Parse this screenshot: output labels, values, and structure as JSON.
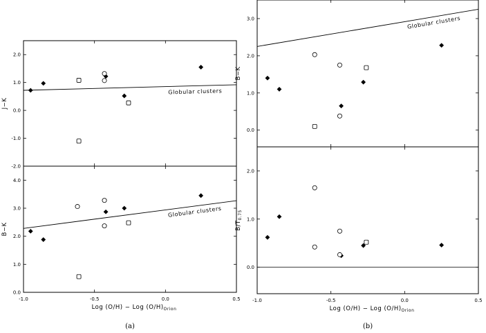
{
  "chart_data": [
    {
      "type": "scatter",
      "ylabel": "J−K",
      "xlim": [
        -1.0,
        0.5
      ],
      "ylim": [
        -2.0,
        2.5
      ],
      "yticks": [
        "2.0",
        "1.0",
        "0.0",
        "-1.0",
        "-2.0"
      ],
      "yticks_values": [
        2.0,
        1.0,
        0.0,
        -1.0,
        -2.0
      ],
      "series": [
        {
          "marker": "filled-diamond",
          "x": [
            -0.95,
            -0.86,
            -0.42,
            -0.29,
            0.25
          ],
          "y": [
            0.72,
            0.97,
            1.22,
            0.52,
            1.55
          ]
        },
        {
          "marker": "open-circle",
          "x": [
            -0.43,
            -0.43
          ],
          "y": [
            1.32,
            1.07
          ]
        },
        {
          "marker": "open-square",
          "x": [
            -0.61,
            -0.61,
            -0.26
          ],
          "y": [
            1.08,
            -1.1,
            0.27
          ]
        }
      ],
      "fit_line": {
        "label": "Globular clusters",
        "x": [
          -1.0,
          0.5
        ],
        "y": [
          0.72,
          0.92
        ]
      }
    },
    {
      "type": "scatter",
      "ylabel": "B−K",
      "xlabel": "Log (O/H) − Log (O/H)",
      "xlabel_sub": "Orion",
      "caption": "(a)",
      "xlim": [
        -1.0,
        0.5
      ],
      "ylim": [
        0.0,
        4.5
      ],
      "xticks": [
        "-1.0",
        "-0.5",
        "0.0",
        "0.5"
      ],
      "xticks_values": [
        -1.0,
        -0.5,
        0.0,
        0.5
      ],
      "yticks": [
        "4.0",
        "3.0",
        "2.0",
        "1.0",
        "0.0"
      ],
      "yticks_values": [
        4.0,
        3.0,
        2.0,
        1.0,
        0.0
      ],
      "series": [
        {
          "marker": "filled-diamond",
          "x": [
            -0.95,
            -0.86,
            -0.42,
            -0.29,
            0.25
          ],
          "y": [
            2.18,
            1.88,
            2.87,
            3.0,
            3.45
          ]
        },
        {
          "marker": "open-circle",
          "x": [
            -0.43,
            -0.43,
            -0.62
          ],
          "y": [
            3.28,
            2.37,
            3.06
          ]
        },
        {
          "marker": "open-square",
          "x": [
            -0.61,
            -0.26
          ],
          "y": [
            0.56,
            2.48
          ]
        }
      ],
      "fit_line": {
        "label": "Globular clusters",
        "x": [
          -1.0,
          0.5
        ],
        "y": [
          2.28,
          3.27
        ]
      }
    },
    {
      "type": "scatter",
      "ylabel": "B−K",
      "xlim": [
        -1.0,
        0.5
      ],
      "ylim": [
        -0.45,
        3.5
      ],
      "yticks": [
        "3.0",
        "2.0",
        "1.0",
        "0.0"
      ],
      "yticks_values": [
        3.0,
        2.0,
        1.0,
        0.0
      ],
      "series": [
        {
          "marker": "filled-diamond",
          "x": [
            -0.93,
            -0.85,
            -0.43,
            -0.28,
            0.25
          ],
          "y": [
            1.4,
            1.1,
            0.65,
            1.29,
            2.28
          ]
        },
        {
          "marker": "open-circle",
          "x": [
            -0.61,
            -0.44,
            -0.44
          ],
          "y": [
            2.03,
            1.75,
            0.38
          ]
        },
        {
          "marker": "open-square",
          "x": [
            -0.61,
            -0.26
          ],
          "y": [
            0.1,
            1.68
          ]
        }
      ],
      "fit_line": {
        "label": "Globular clusters",
        "x": [
          -1.0,
          0.5
        ],
        "y": [
          2.25,
          3.25
        ]
      }
    },
    {
      "type": "scatter",
      "ylabel": "B/T",
      "ylabel_sub": "0.75",
      "xlabel": "Log (O/H) − Log (O/H)",
      "xlabel_sub": "Orion",
      "caption": "(b)",
      "xlim": [
        -1.0,
        0.5
      ],
      "ylim": [
        -0.55,
        2.5
      ],
      "xticks": [
        "-1.0",
        "-0.5",
        "0.0",
        "0.5"
      ],
      "xticks_values": [
        -1.0,
        -0.5,
        0.0,
        0.5
      ],
      "yticks": [
        "2.0",
        "1.0",
        "0.0"
      ],
      "yticks_values": [
        2.0,
        1.0,
        0.0
      ],
      "series": [
        {
          "marker": "filled-diamond",
          "x": [
            -0.93,
            -0.85,
            -0.43,
            -0.28,
            0.25
          ],
          "y": [
            0.62,
            1.05,
            0.24,
            0.45,
            0.46
          ]
        },
        {
          "marker": "open-circle",
          "x": [
            -0.61,
            -0.61,
            -0.44,
            -0.44
          ],
          "y": [
            1.65,
            0.42,
            0.75,
            0.26
          ]
        },
        {
          "marker": "open-square",
          "x": [
            -0.26
          ],
          "y": [
            0.52
          ]
        }
      ],
      "reference_line": {
        "y": 0.0
      }
    }
  ]
}
